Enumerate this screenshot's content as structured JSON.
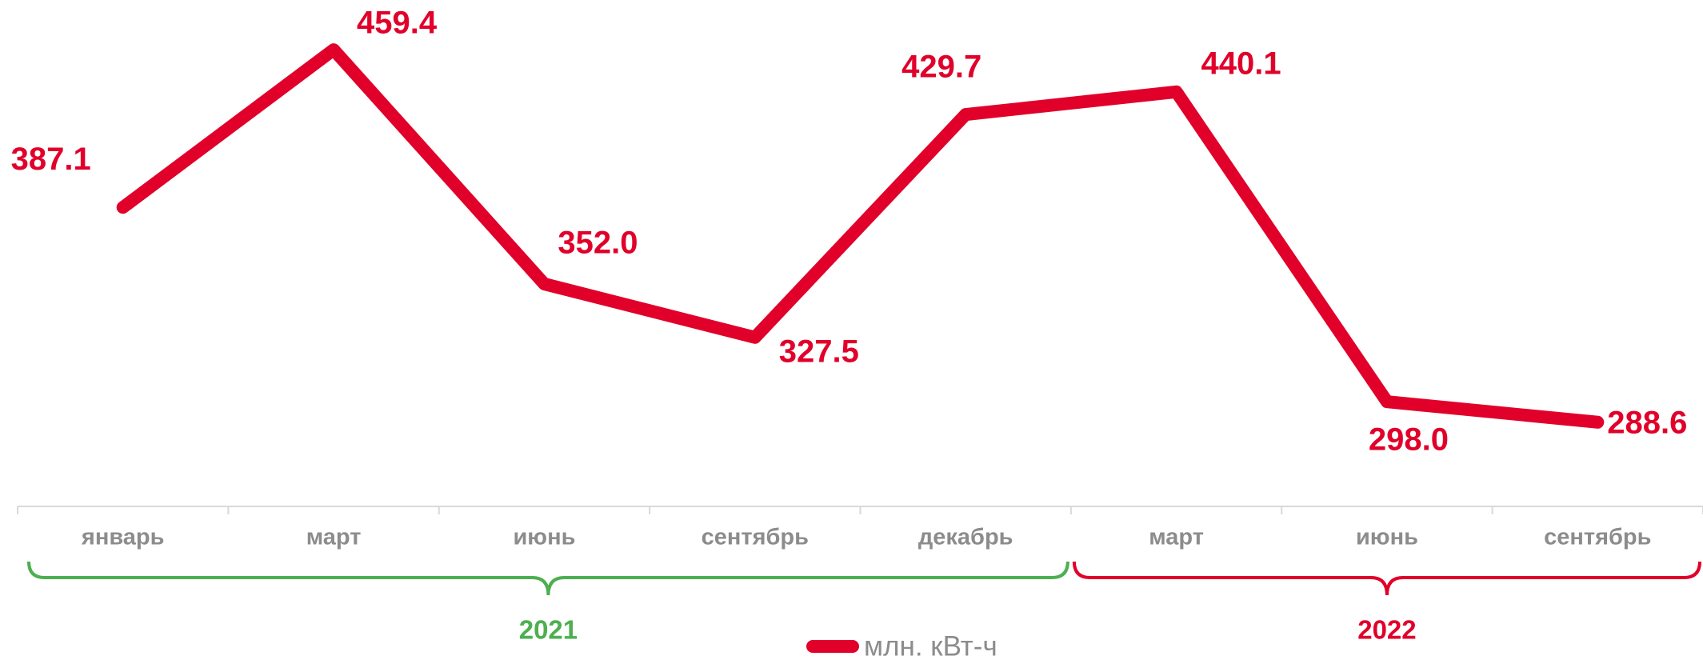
{
  "chart_data": {
    "type": "line",
    "categories": [
      "январь",
      "март",
      "июнь",
      "сентябрь",
      "декабрь",
      "март",
      "июнь",
      "сентябрь"
    ],
    "series": [
      {
        "name": "млн. кВт-ч",
        "color": "#e1002a",
        "values": [
          387.1,
          459.4,
          352.0,
          327.5,
          429.7,
          440.1,
          298.0,
          288.6
        ],
        "value_labels": [
          "387.1",
          "459.4",
          "352.0",
          "327.5",
          "429.7",
          "440.1",
          "298.0",
          "288.6"
        ]
      }
    ],
    "ylim": [
      250,
      480
    ],
    "groups": [
      {
        "label": "2021",
        "color": "#4caf50",
        "span": 5
      },
      {
        "label": "2022",
        "color": "#e1002a",
        "span": 3
      }
    ],
    "legend": "bottom"
  }
}
